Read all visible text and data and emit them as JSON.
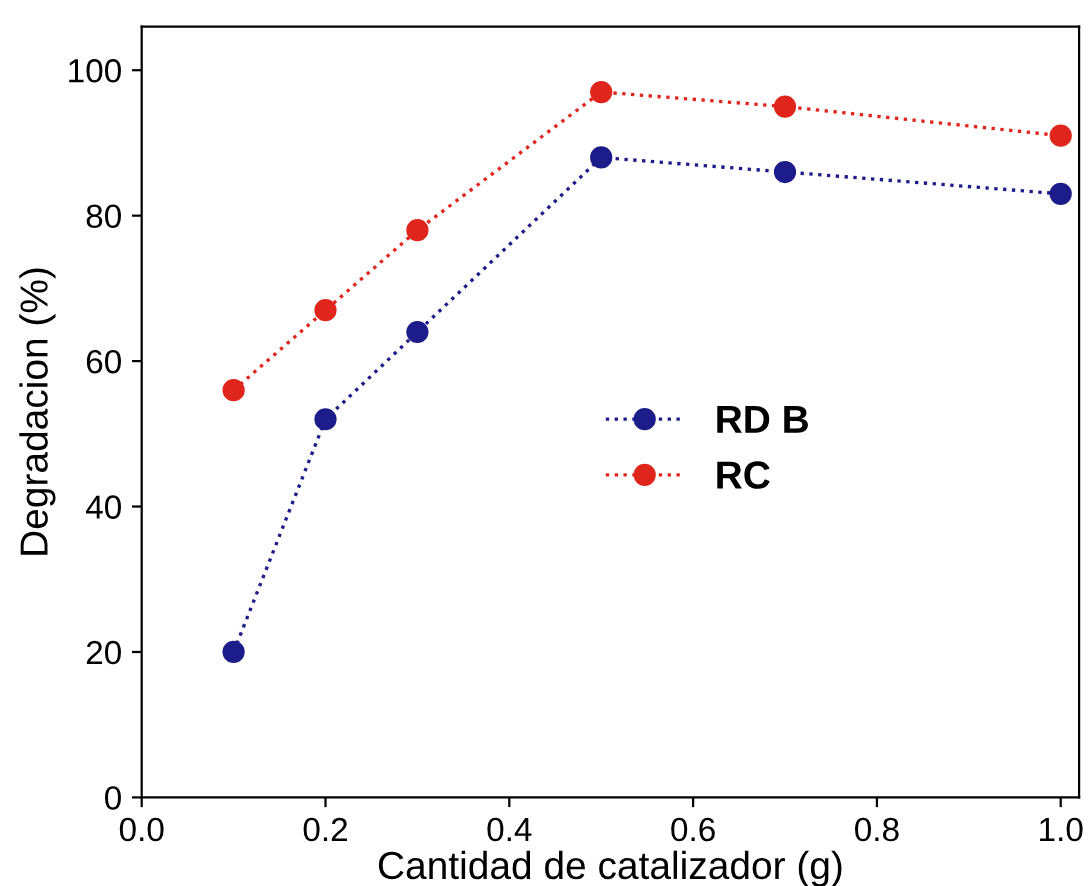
{
  "chart_data": {
    "type": "line",
    "xlabel": "Cantidad de catalizador (g)",
    "ylabel": "Degradacion (%)",
    "x": [
      0.1,
      0.2,
      0.3,
      0.5,
      0.7,
      1.0
    ],
    "series": [
      {
        "name": "RD B",
        "color": "#1c1c8a",
        "values": [
          20,
          52,
          64,
          88,
          86,
          83
        ]
      },
      {
        "name": "RC",
        "color": "#e0261c",
        "values": [
          56,
          67,
          78,
          97,
          95,
          91
        ]
      }
    ],
    "xlim": [
      0,
      1.02
    ],
    "xticks": [
      {
        "value": 0,
        "label": "0.0"
      },
      {
        "value": 0.2,
        "label": "0.2"
      },
      {
        "value": 0.4,
        "label": "0.4"
      },
      {
        "value": 0.6,
        "label": "0.6"
      },
      {
        "value": 0.8,
        "label": "0.8"
      },
      {
        "value": 1.0,
        "label": "1.0"
      }
    ],
    "ylim": [
      0,
      106
    ],
    "yticks": [
      0,
      20,
      40,
      60,
      80,
      100
    ],
    "grid": false,
    "legend": "center right",
    "marker": "circle",
    "line_style": "dotted"
  }
}
